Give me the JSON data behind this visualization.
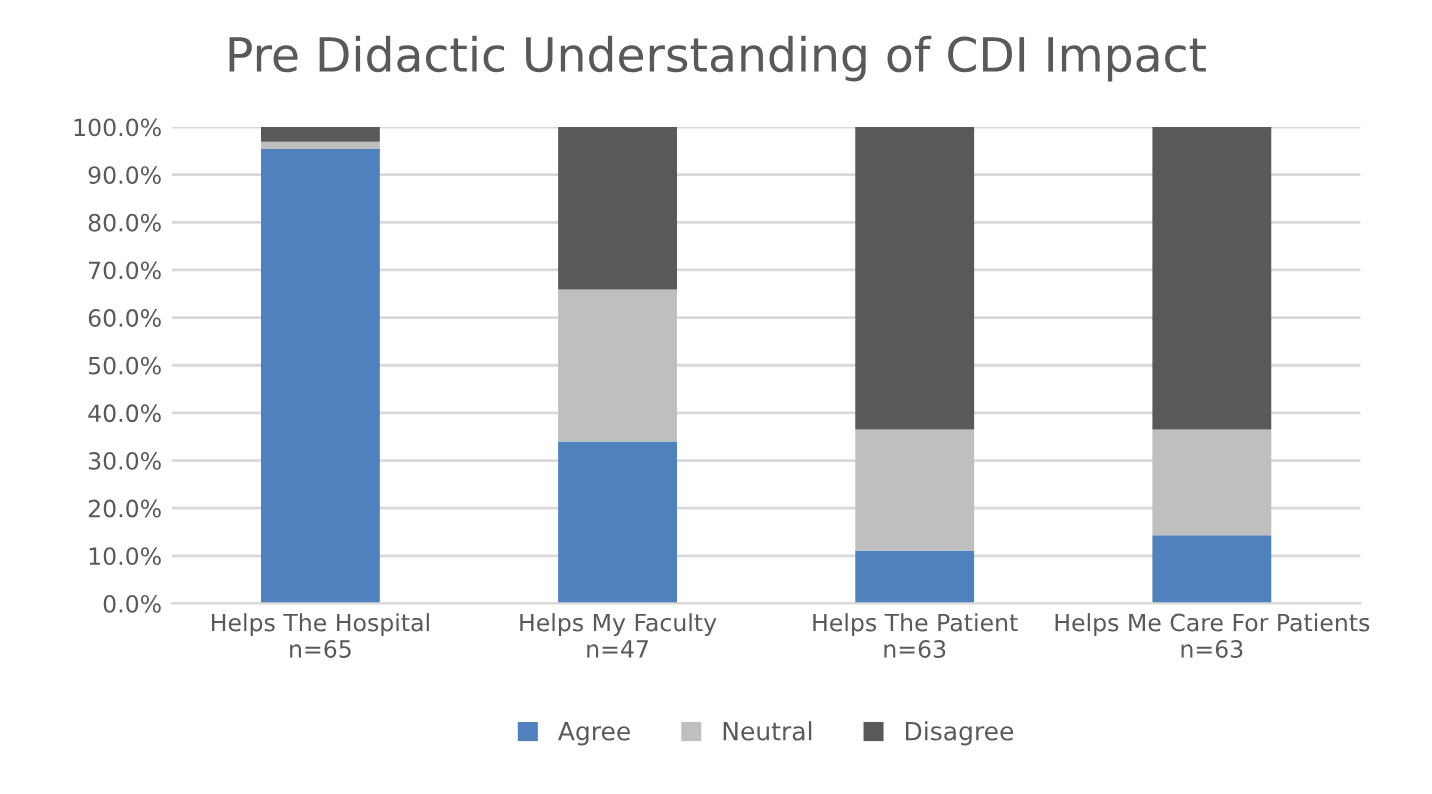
{
  "chart_data": {
    "type": "bar",
    "stacked": true,
    "title": "Pre Didactic Understanding of CDI Impact",
    "categories": [
      "Helps The Hospital\nn=65",
      "Helps My Faculty\nn=47",
      "Helps The Patient\nn=63",
      "Helps Me Care For Patients\nn=63"
    ],
    "series": [
      {
        "name": "Agree",
        "color": "#4f81bd",
        "values": [
          95.4,
          34.0,
          11.1,
          14.3
        ]
      },
      {
        "name": "Neutral",
        "color": "#bfbfbf",
        "values": [
          1.5,
          31.9,
          25.4,
          22.2
        ]
      },
      {
        "name": "Disagree",
        "color": "#595959",
        "values": [
          3.1,
          34.1,
          63.5,
          63.5
        ]
      }
    ],
    "ylim": [
      0,
      100
    ],
    "yticks": [
      {
        "value": 0,
        "label": "0.0%"
      },
      {
        "value": 10,
        "label": "10.0%"
      },
      {
        "value": 20,
        "label": "20.0%"
      },
      {
        "value": 30,
        "label": "30.0%"
      },
      {
        "value": 40,
        "label": "40.0%"
      },
      {
        "value": 50,
        "label": "50.0%"
      },
      {
        "value": 60,
        "label": "60.0%"
      },
      {
        "value": 70,
        "label": "70.0%"
      },
      {
        "value": 80,
        "label": "80.0%"
      },
      {
        "value": 90,
        "label": "90.0%"
      },
      {
        "value": 100,
        "label": "100.0%"
      }
    ],
    "grid": "y",
    "legend": "bottom"
  }
}
